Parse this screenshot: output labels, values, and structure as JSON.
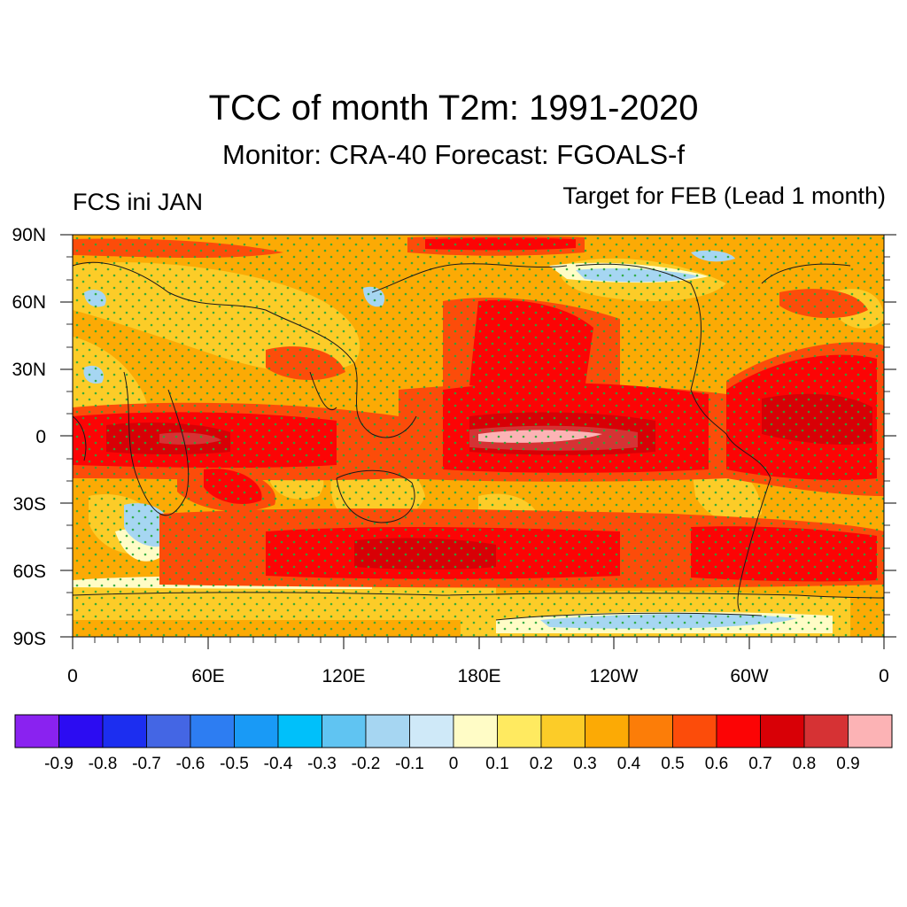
{
  "title": "TCC of month T2m: 1991-2020",
  "subtitle": "Monitor: CRA-40   Forecast: FGOALS-f",
  "left_label": "FCS ini JAN",
  "right_label": "Target for FEB (Lead 1 month)",
  "lat_labels": [
    "90N",
    "60N",
    "30N",
    "0",
    "30S",
    "60S",
    "90S"
  ],
  "lon_labels": [
    "0",
    "60E",
    "120E",
    "180E",
    "120W",
    "60W",
    "0"
  ],
  "colorbar": {
    "labels": [
      "-0.9",
      "-0.8",
      "-0.7",
      "-0.6",
      "-0.5",
      "-0.4",
      "-0.3",
      "-0.2",
      "-0.1",
      "0",
      "0.1",
      "0.2",
      "0.3",
      "0.4",
      "0.5",
      "0.6",
      "0.7",
      "0.8",
      "0.9"
    ],
    "colors": [
      "#8a22f0",
      "#2c0cf2",
      "#1c2ef0",
      "#4466e4",
      "#2d7df2",
      "#199af6",
      "#00c0fa",
      "#60c4f2",
      "#a6d6f2",
      "#cfe9f8",
      "#fffcc6",
      "#ffea60",
      "#fccc28",
      "#fcaa05",
      "#fc7d08",
      "#fc4c0a",
      "#fc0405",
      "#d80006",
      "#d63234",
      "#fcb3b5"
    ]
  },
  "map": {
    "variable": "Temporal correlation coefficient (TCC) of monthly T2m",
    "stipple_color": "#27a83a",
    "base_color": "#fcaa05"
  }
}
